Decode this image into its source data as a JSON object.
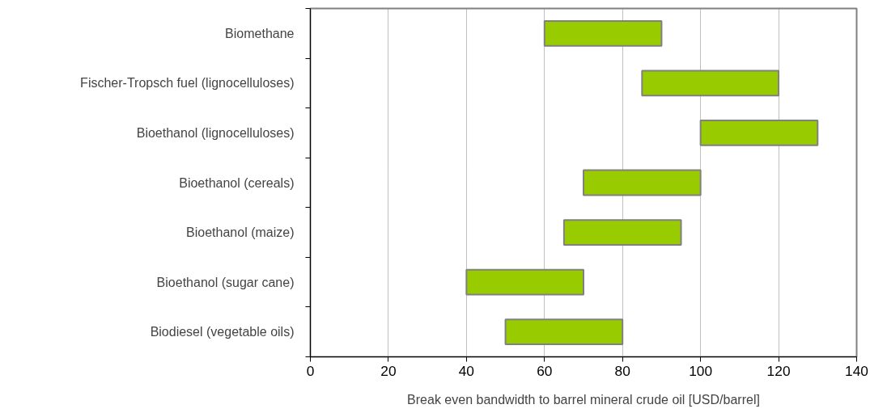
{
  "chart_data": {
    "type": "bar",
    "orientation": "horizontal",
    "categories": [
      "Biomethane",
      "Fischer-Tropsch fuel (lignocelluloses)",
      "Bioethanol (lignocelluloses)",
      "Bioethanol (cereals)",
      "Bioethanol (maize)",
      "Bioethanol (sugar cane)",
      "Biodiesel (vegetable oils)"
    ],
    "base": [
      60,
      85,
      100,
      70,
      65,
      40,
      50
    ],
    "values": [
      30,
      35,
      30,
      30,
      30,
      30,
      30
    ],
    "color": "#99cc00",
    "xlim": [
      0,
      140
    ],
    "xticks": [
      0,
      20,
      40,
      60,
      80,
      100,
      120,
      140
    ],
    "xlabel": "Break even bandwidth to barrel mineral crude oil [USD/barrel]",
    "grid": "x"
  }
}
